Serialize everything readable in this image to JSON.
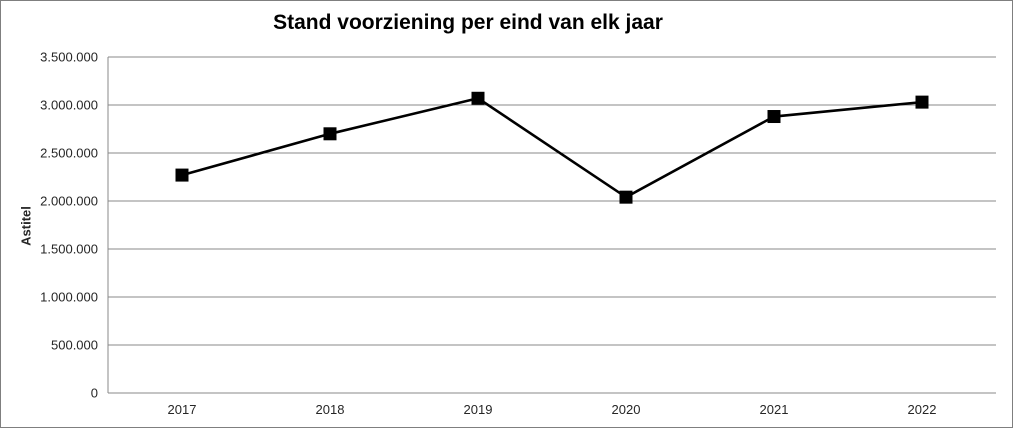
{
  "chart_data": {
    "type": "line",
    "title": "Stand voorziening per eind van elk jaar",
    "xlabel": "",
    "ylabel": "Astitel",
    "categories": [
      "2017",
      "2018",
      "2019",
      "2020",
      "2021",
      "2022"
    ],
    "series": [
      {
        "name": "",
        "values": [
          2270000,
          2700000,
          3070000,
          2040000,
          2880000,
          3030000
        ]
      }
    ],
    "ylim": [
      0,
      3500000
    ],
    "ytick_step": 500000,
    "ytick_labels": [
      "0",
      "500.000",
      "1.000.000",
      "1.500.000",
      "2.000.000",
      "2.500.000",
      "3.000.000",
      "3.500.000"
    ],
    "grid": true,
    "legend": false,
    "marker": "square",
    "colors": {
      "line": "#000000",
      "marker": "#000000",
      "gridline": "#898989",
      "axis": "#898989",
      "frame_border": "#7f7f7f",
      "title_text": "#000000",
      "tick_text": "#262626",
      "background": "#ffffff"
    }
  }
}
